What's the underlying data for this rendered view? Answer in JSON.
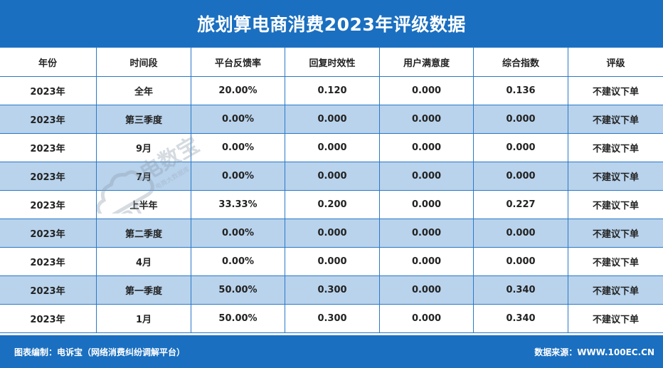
{
  "title": "旅划算电商消费2023年评级数据",
  "chart_data": {
    "type": "table",
    "title": "旅划算电商消费2023年评级数据",
    "columns": [
      "年份",
      "时间段",
      "平台反馈率",
      "回复时效性",
      "用户满意度",
      "综合指数",
      "评级"
    ],
    "rows": [
      [
        "2023年",
        "全年",
        "20.00%",
        "0.120",
        "0.000",
        "0.136",
        "不建议下单"
      ],
      [
        "2023年",
        "第三季度",
        "0.00%",
        "0.000",
        "0.000",
        "0.000",
        "不建议下单"
      ],
      [
        "2023年",
        "9月",
        "0.00%",
        "0.000",
        "0.000",
        "0.000",
        "不建议下单"
      ],
      [
        "2023年",
        "7月",
        "0.00%",
        "0.000",
        "0.000",
        "0.000",
        "不建议下单"
      ],
      [
        "2023年",
        "上半年",
        "33.33%",
        "0.200",
        "0.000",
        "0.227",
        "不建议下单"
      ],
      [
        "2023年",
        "第二季度",
        "0.00%",
        "0.000",
        "0.000",
        "0.000",
        "不建议下单"
      ],
      [
        "2023年",
        "4月",
        "0.00%",
        "0.000",
        "0.000",
        "0.000",
        "不建议下单"
      ],
      [
        "2023年",
        "第一季度",
        "50.00%",
        "0.300",
        "0.000",
        "0.340",
        "不建议下单"
      ],
      [
        "2023年",
        "1月",
        "50.00%",
        "0.300",
        "0.000",
        "0.340",
        "不建议下单"
      ]
    ]
  },
  "footer": {
    "left": "图表编制：电诉宝（网络消费纠纷调解平台）",
    "right": "数据来源：WWW.100EC.CN"
  },
  "watermark": {
    "icon": "cloud-logo-icon",
    "text": "电数宝",
    "subtext": "电商大数据库",
    "brand": "EDT"
  },
  "colors": {
    "header_bar": "#1a6fc0",
    "row_stripe": "#b9d3ec",
    "border": "#2a78c8"
  }
}
